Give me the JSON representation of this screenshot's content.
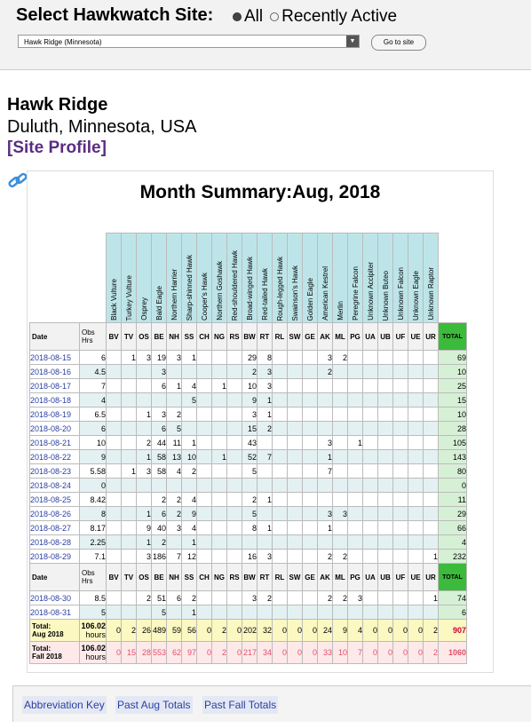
{
  "selector": {
    "title": "Select Hawkwatch Site:",
    "option_all": "All",
    "option_recent": "Recently Active",
    "selected_site": "Hawk Ridge (Minnesota)",
    "go_label": "Go to site"
  },
  "site": {
    "name": "Hawk Ridge",
    "location": "Duluth, Minnesota, USA",
    "profile_link": "[Site Profile]"
  },
  "summary": {
    "title": "Month Summary:Aug, 2018",
    "date_label": "Date",
    "obs_label": "Obs Hrs",
    "total_label": "TOTAL",
    "species": [
      {
        "name": "Black Vulture",
        "abbr": "BV"
      },
      {
        "name": "Turkey Vulture",
        "abbr": "TV"
      },
      {
        "name": "Osprey",
        "abbr": "OS"
      },
      {
        "name": "Bald Eagle",
        "abbr": "BE"
      },
      {
        "name": "Northern Harrier",
        "abbr": "NH"
      },
      {
        "name": "Sharp-shinned Hawk",
        "abbr": "SS"
      },
      {
        "name": "Cooper's Hawk",
        "abbr": "CH"
      },
      {
        "name": "Northern Goshawk",
        "abbr": "NG"
      },
      {
        "name": "Red-shouldered Hawk",
        "abbr": "RS"
      },
      {
        "name": "Broad-winged Hawk",
        "abbr": "BW"
      },
      {
        "name": "Red-tailed Hawk",
        "abbr": "RT"
      },
      {
        "name": "Rough-legged Hawk",
        "abbr": "RL"
      },
      {
        "name": "Swainson's Hawk",
        "abbr": "SW"
      },
      {
        "name": "Golden Eagle",
        "abbr": "GE"
      },
      {
        "name": "American Kestrel",
        "abbr": "AK"
      },
      {
        "name": "Merlin",
        "abbr": "ML"
      },
      {
        "name": "Peregrine Falcon",
        "abbr": "PG"
      },
      {
        "name": "Unknown Accipiter",
        "abbr": "UA"
      },
      {
        "name": "Unknown Buteo",
        "abbr": "UB"
      },
      {
        "name": "Unknown Falcon",
        "abbr": "UF"
      },
      {
        "name": "Unknown Eagle",
        "abbr": "UE"
      },
      {
        "name": "Unknown Raptor",
        "abbr": "UR"
      }
    ],
    "rows": [
      {
        "date": "2018-08-15",
        "hrs": "6",
        "counts": [
          "",
          "1",
          "3",
          "19",
          "3",
          "1",
          "",
          "",
          "",
          "29",
          "8",
          "",
          "",
          "",
          "3",
          "2",
          "",
          "",
          "",
          "",
          "",
          ""
        ],
        "total": "69"
      },
      {
        "date": "2018-08-16",
        "hrs": "4.5",
        "counts": [
          "",
          "",
          "",
          "3",
          "",
          "",
          "",
          "",
          "",
          "2",
          "3",
          "",
          "",
          "",
          "2",
          "",
          "",
          "",
          "",
          "",
          "",
          ""
        ],
        "total": "10"
      },
      {
        "date": "2018-08-17",
        "hrs": "7",
        "counts": [
          "",
          "",
          "",
          "6",
          "1",
          "4",
          "",
          "1",
          "",
          "10",
          "3",
          "",
          "",
          "",
          "",
          "",
          "",
          "",
          "",
          "",
          "",
          ""
        ],
        "total": "25"
      },
      {
        "date": "2018-08-18",
        "hrs": "4",
        "counts": [
          "",
          "",
          "",
          "",
          "",
          "5",
          "",
          "",
          "",
          "9",
          "1",
          "",
          "",
          "",
          "",
          "",
          "",
          "",
          "",
          "",
          "",
          ""
        ],
        "total": "15"
      },
      {
        "date": "2018-08-19",
        "hrs": "6.5",
        "counts": [
          "",
          "",
          "1",
          "3",
          "2",
          "",
          "",
          "",
          "",
          "3",
          "1",
          "",
          "",
          "",
          "",
          "",
          "",
          "",
          "",
          "",
          "",
          ""
        ],
        "total": "10"
      },
      {
        "date": "2018-08-20",
        "hrs": "6",
        "counts": [
          "",
          "",
          "",
          "6",
          "5",
          "",
          "",
          "",
          "",
          "15",
          "2",
          "",
          "",
          "",
          "",
          "",
          "",
          "",
          "",
          "",
          "",
          ""
        ],
        "total": "28"
      },
      {
        "date": "2018-08-21",
        "hrs": "10",
        "counts": [
          "",
          "",
          "2",
          "44",
          "11",
          "1",
          "",
          "",
          "",
          "43",
          "",
          "",
          "",
          "",
          "3",
          "",
          "1",
          "",
          "",
          "",
          "",
          ""
        ],
        "total": "105"
      },
      {
        "date": "2018-08-22",
        "hrs": "9",
        "counts": [
          "",
          "",
          "1",
          "58",
          "13",
          "10",
          "",
          "1",
          "",
          "52",
          "7",
          "",
          "",
          "",
          "1",
          "",
          "",
          "",
          "",
          "",
          "",
          ""
        ],
        "total": "143"
      },
      {
        "date": "2018-08-23",
        "hrs": "5.58",
        "counts": [
          "",
          "1",
          "3",
          "58",
          "4",
          "2",
          "",
          "",
          "",
          "5",
          "",
          "",
          "",
          "",
          "7",
          "",
          "",
          "",
          "",
          "",
          "",
          ""
        ],
        "total": "80"
      },
      {
        "date": "2018-08-24",
        "hrs": "0",
        "counts": [
          "",
          "",
          "",
          "",
          "",
          "",
          "",
          "",
          "",
          "",
          "",
          "",
          "",
          "",
          "",
          "",
          "",
          "",
          "",
          "",
          "",
          ""
        ],
        "total": "0"
      },
      {
        "date": "2018-08-25",
        "hrs": "8.42",
        "counts": [
          "",
          "",
          "",
          "2",
          "2",
          "4",
          "",
          "",
          "",
          "2",
          "1",
          "",
          "",
          "",
          "",
          "",
          "",
          "",
          "",
          "",
          "",
          ""
        ],
        "total": "11"
      },
      {
        "date": "2018-08-26",
        "hrs": "8",
        "counts": [
          "",
          "",
          "1",
          "6",
          "2",
          "9",
          "",
          "",
          "",
          "5",
          "",
          "",
          "",
          "",
          "3",
          "3",
          "",
          "",
          "",
          "",
          "",
          ""
        ],
        "total": "29"
      },
      {
        "date": "2018-08-27",
        "hrs": "8.17",
        "counts": [
          "",
          "",
          "9",
          "40",
          "3",
          "4",
          "",
          "",
          "",
          "8",
          "1",
          "",
          "",
          "",
          "1",
          "",
          "",
          "",
          "",
          "",
          "",
          ""
        ],
        "total": "66"
      },
      {
        "date": "2018-08-28",
        "hrs": "2.25",
        "counts": [
          "",
          "",
          "1",
          "2",
          "",
          "1",
          "",
          "",
          "",
          "",
          "",
          "",
          "",
          "",
          "",
          "",
          "",
          "",
          "",
          "",
          "",
          ""
        ],
        "total": "4"
      },
      {
        "date": "2018-08-29",
        "hrs": "7.1",
        "counts": [
          "",
          "",
          "3",
          "186",
          "7",
          "12",
          "",
          "",
          "",
          "16",
          "3",
          "",
          "",
          "",
          "2",
          "2",
          "",
          "",
          "",
          "",
          "",
          "1"
        ],
        "total": "232"
      }
    ],
    "rows2": [
      {
        "date": "2018-08-30",
        "hrs": "8.5",
        "counts": [
          "",
          "",
          "2",
          "51",
          "6",
          "2",
          "",
          "",
          "",
          "3",
          "2",
          "",
          "",
          "",
          "2",
          "2",
          "3",
          "",
          "",
          "",
          "",
          "1"
        ],
        "total": "74"
      },
      {
        "date": "2018-08-31",
        "hrs": "5",
        "counts": [
          "",
          "",
          "",
          "5",
          "",
          "1",
          "",
          "",
          "",
          "",
          "",
          "",
          "",
          "",
          "",
          "",
          "",
          "",
          "",
          "",
          "",
          ""
        ],
        "total": "6"
      }
    ],
    "total_row": {
      "label": "Total: Aug 2018",
      "hrs": "106.02 hours",
      "counts": [
        "0",
        "2",
        "26",
        "489",
        "59",
        "56",
        "0",
        "2",
        "0",
        "202",
        "32",
        "0",
        "0",
        "0",
        "24",
        "9",
        "4",
        "0",
        "0",
        "0",
        "0",
        "2"
      ],
      "total": "907"
    },
    "fall_row": {
      "label": "Total: Fall 2018",
      "hrs": "106.02 hours",
      "counts": [
        "0",
        "15",
        "28",
        "553",
        "62",
        "97",
        "0",
        "2",
        "0",
        "217",
        "34",
        "0",
        "0",
        "0",
        "33",
        "10",
        "7",
        "0",
        "0",
        "0",
        "0",
        "2"
      ],
      "total": "1060"
    }
  },
  "bottom": {
    "abbrev_key": "Abbreviation Key",
    "past_aug": "Past Aug Totals",
    "past_fall": "Past Fall Totals"
  },
  "colors": {
    "link": "#2b3fa1",
    "profile": "#5a2d82",
    "header_bg": "#bde5e9",
    "total_green": "#3cba3c"
  },
  "icons": {
    "link_icon": "chain-link-icon"
  }
}
